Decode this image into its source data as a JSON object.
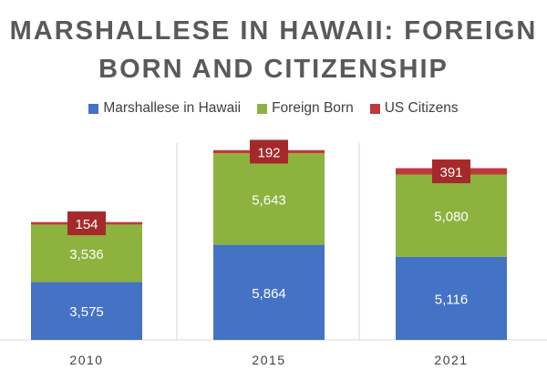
{
  "chart_data": {
    "type": "bar",
    "stacked": true,
    "title_lines": [
      "MARSHALLESE IN HAWAII: FOREIGN",
      "BORN AND CITIZENSHIP"
    ],
    "categories": [
      "2010",
      "2015",
      "2021"
    ],
    "series": [
      {
        "name": "Marshallese in Hawaii",
        "values": [
          3575,
          5864,
          5116
        ],
        "color": "#4472C4",
        "labels": [
          "3,575",
          "5,864",
          "5,116"
        ]
      },
      {
        "name": "Foreign Born",
        "values": [
          3536,
          5643,
          5080
        ],
        "color": "#8DB23E",
        "labels": [
          "3,536",
          "5,643",
          "5,080"
        ]
      },
      {
        "name": "US Citizens",
        "values": [
          154,
          192,
          391
        ],
        "color": "#C0393B",
        "labels": [
          "154",
          "192",
          "391"
        ]
      }
    ],
    "legend_position": "top",
    "grid": false
  }
}
